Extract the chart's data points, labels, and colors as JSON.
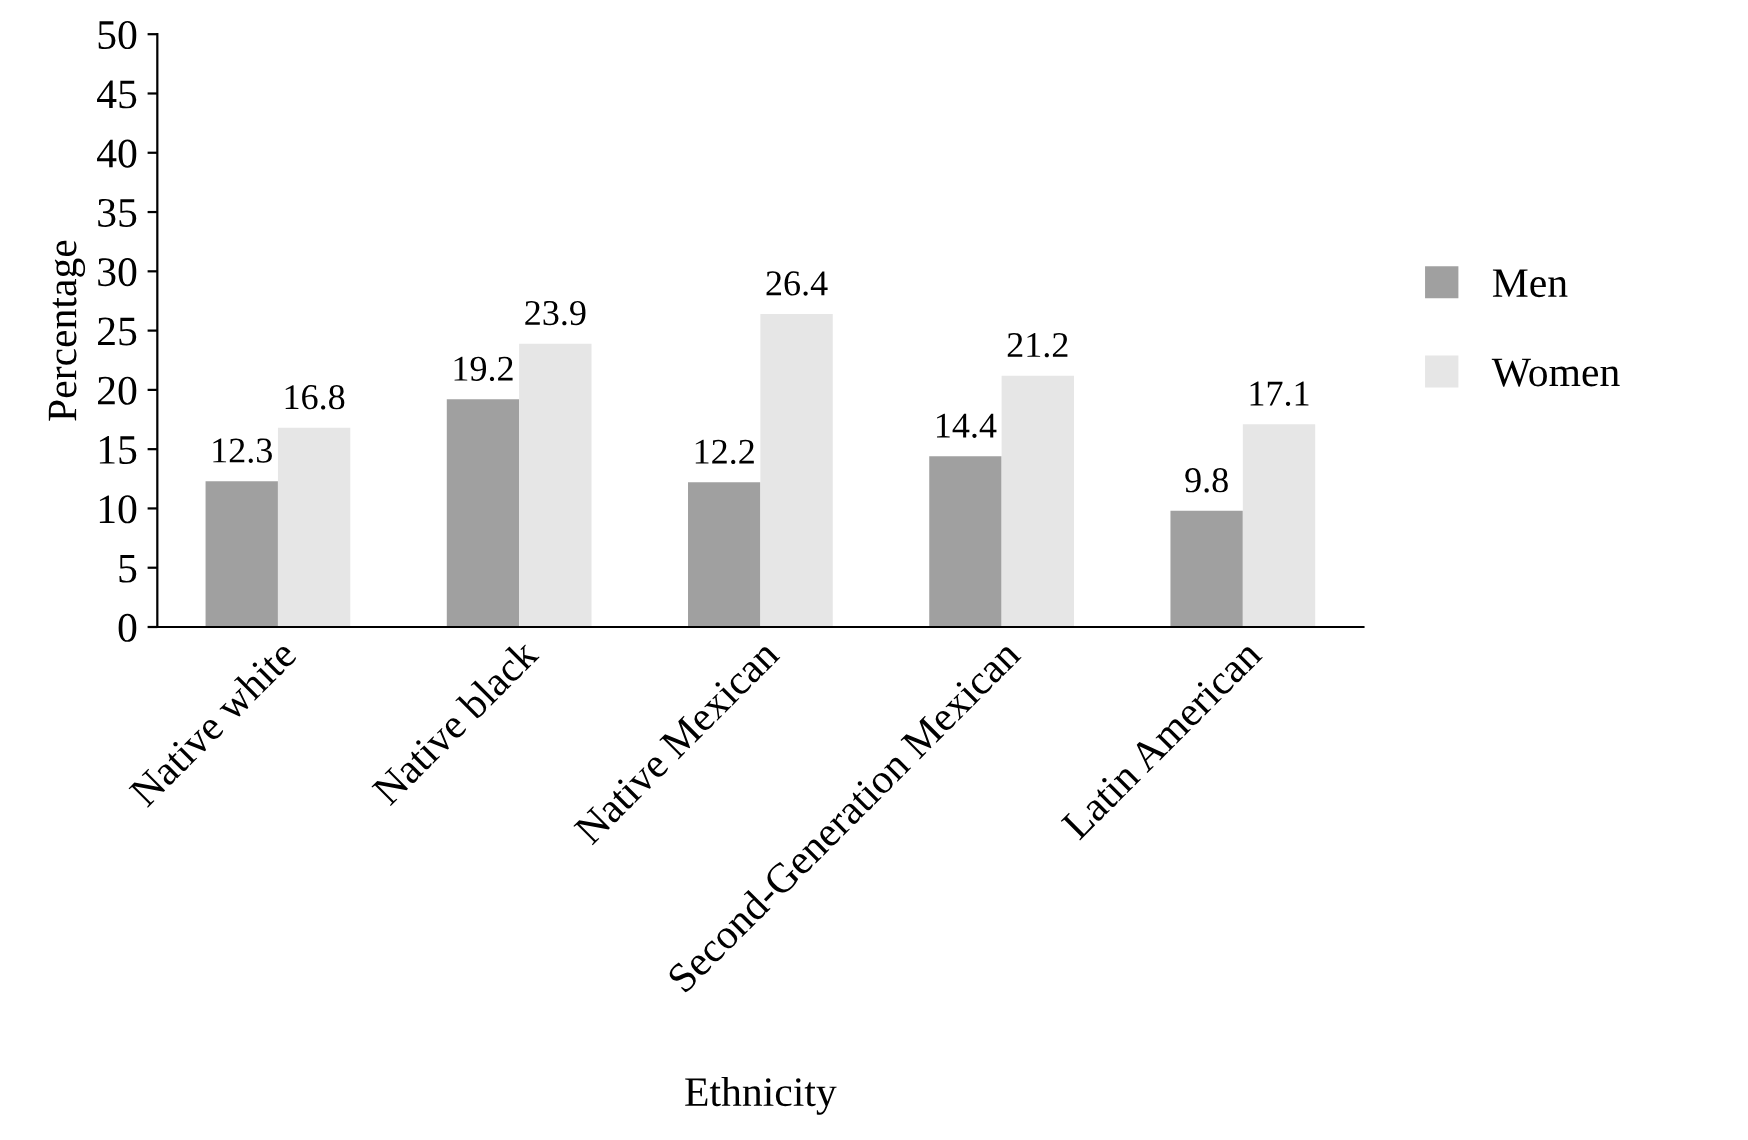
{
  "chart_data": {
    "type": "bar",
    "xlabel": "Ethnicity",
    "ylabel": "Percentage",
    "categories": [
      "Native white",
      "Native black",
      "Native Mexican",
      "Second-Generation Mexican",
      "Latin American"
    ],
    "series": [
      {
        "name": "Men",
        "color": "#a0a0a0",
        "values": [
          12.3,
          19.2,
          12.2,
          14.4,
          9.8
        ]
      },
      {
        "name": "Women",
        "color": "#e6e6e6",
        "values": [
          16.8,
          23.9,
          26.4,
          21.2,
          17.1
        ]
      }
    ],
    "ylim": [
      0,
      50
    ],
    "yticks": [
      0,
      5,
      10,
      15,
      20,
      25,
      30,
      35,
      40,
      45,
      50
    ],
    "data_labels": true,
    "legend": "right",
    "grid": false
  }
}
